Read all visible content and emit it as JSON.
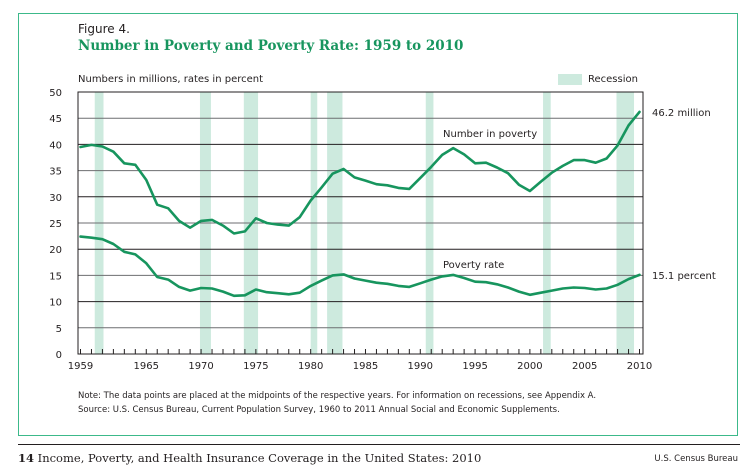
{
  "figure": {
    "number": "Figure 4.",
    "title": "Number in Poverty and Poverty Rate: 1959 to 2010",
    "units_label": "Numbers in millions, rates in percent",
    "legend_label": "Recession",
    "note": "Note: The data points are placed at the midpoints of the respective years. For information on recessions, see Appendix A.",
    "source": "Source: U.S. Census Bureau, Current Population Survey, 1960 to 2011 Annual Social and Economic Supplements."
  },
  "footer": {
    "page_number": "14",
    "publication_title": "Income, Poverty, and Health Insurance Coverage in the United States: 2010",
    "publisher": "U.S. Census Bureau"
  },
  "colors": {
    "line": "#17955e",
    "recession": "#cdeade",
    "frame": "#3cb98a",
    "title": "#17955e"
  },
  "chart_data": {
    "type": "line",
    "title": "Number in Poverty and Poverty Rate: 1959 to 2010",
    "xlabel": "",
    "ylabel": "Numbers in millions, rates in percent",
    "xlim": [
      1959,
      2010
    ],
    "ylim": [
      0,
      50
    ],
    "grid": true,
    "yticks": [
      0,
      5,
      10,
      15,
      20,
      25,
      30,
      35,
      40,
      45,
      50
    ],
    "xtick_labels": [
      "1959",
      "1965",
      "1970",
      "1975",
      "1980",
      "1985",
      "1990",
      "1995",
      "2000",
      "2005",
      "2010"
    ],
    "legend": [
      "Recession"
    ],
    "legend_position": "top-right",
    "recessions": [
      [
        1960.3,
        1961.1
      ],
      [
        1969.9,
        1970.9
      ],
      [
        1973.9,
        1975.2
      ],
      [
        1980.0,
        1980.6
      ],
      [
        1981.5,
        1982.9
      ],
      [
        1990.5,
        1991.2
      ],
      [
        2001.2,
        2001.9
      ],
      [
        2007.9,
        2009.5
      ]
    ],
    "x": [
      1959,
      1960,
      1961,
      1962,
      1963,
      1964,
      1965,
      1966,
      1967,
      1968,
      1969,
      1970,
      1971,
      1972,
      1973,
      1974,
      1975,
      1976,
      1977,
      1978,
      1979,
      1980,
      1981,
      1982,
      1983,
      1984,
      1985,
      1986,
      1987,
      1988,
      1989,
      1990,
      1991,
      1992,
      1993,
      1994,
      1995,
      1996,
      1997,
      1998,
      1999,
      2000,
      2001,
      2002,
      2003,
      2004,
      2005,
      2006,
      2007,
      2008,
      2009,
      2010
    ],
    "series": [
      {
        "name": "Number in poverty",
        "label": "Number in poverty",
        "end_label": "46.2 million",
        "values": [
          39.5,
          39.9,
          39.6,
          38.6,
          36.4,
          36.1,
          33.2,
          28.5,
          27.8,
          25.4,
          24.1,
          25.4,
          25.6,
          24.5,
          23.0,
          23.4,
          25.9,
          25.0,
          24.7,
          24.5,
          26.1,
          29.3,
          31.8,
          34.4,
          35.3,
          33.7,
          33.1,
          32.4,
          32.2,
          31.7,
          31.5,
          33.6,
          35.7,
          38.0,
          39.3,
          38.1,
          36.4,
          36.5,
          35.6,
          34.5,
          32.3,
          31.1,
          32.9,
          34.6,
          35.9,
          37.0,
          37.0,
          36.5,
          37.3,
          39.8,
          43.6,
          46.2
        ]
      },
      {
        "name": "Poverty rate",
        "label": "Poverty rate",
        "end_label": "15.1 percent",
        "values": [
          22.4,
          22.2,
          21.9,
          21.0,
          19.5,
          19.0,
          17.3,
          14.7,
          14.2,
          12.8,
          12.1,
          12.6,
          12.5,
          11.9,
          11.1,
          11.2,
          12.3,
          11.8,
          11.6,
          11.4,
          11.7,
          13.0,
          14.0,
          15.0,
          15.2,
          14.4,
          14.0,
          13.6,
          13.4,
          13.0,
          12.8,
          13.5,
          14.2,
          14.8,
          15.1,
          14.5,
          13.8,
          13.7,
          13.3,
          12.7,
          11.9,
          11.3,
          11.7,
          12.1,
          12.5,
          12.7,
          12.6,
          12.3,
          12.5,
          13.2,
          14.3,
          15.1
        ]
      }
    ]
  }
}
